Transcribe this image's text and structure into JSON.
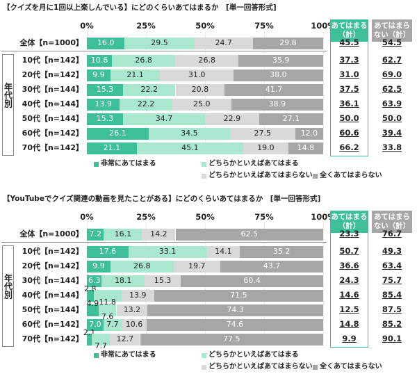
{
  "chart_data": [
    {
      "type": "bar",
      "orientation": "horizontal",
      "stacked": true,
      "title": "【クイズを月に1回以上楽しんでいる】にどのくらいあてはまるか　[単一回答形式]",
      "categories": [
        "全体【n=1000】",
        "10代【n=142】",
        "20代【n=142】",
        "30代【n=144】",
        "40代【n=144】",
        "50代【n=144】",
        "60代【n=142】",
        "70代【n=142】"
      ],
      "group_label": "年代別",
      "xlim": [
        0,
        100
      ],
      "xticks": [
        {
          "value": 0,
          "label": "0%"
        },
        {
          "value": 25,
          "label": "25%"
        },
        {
          "value": 50,
          "label": "50%"
        },
        {
          "value": 75,
          "label": "75%"
        },
        {
          "value": 100,
          "label": "100%"
        }
      ],
      "series": [
        {
          "name": "非常にあてはまる",
          "color": "#3dbf99",
          "values": [
            16.0,
            10.6,
            9.9,
            15.3,
            13.9,
            15.3,
            26.1,
            21.1
          ],
          "value_labels": [
            "16.0",
            "10.6",
            "9.9",
            "15.3",
            "13.9",
            "15.3",
            "26.1",
            "21.1"
          ]
        },
        {
          "name": "どちらかといえばあてはまる",
          "color": "#a9e8cf",
          "values": [
            29.5,
            26.8,
            21.1,
            22.2,
            22.2,
            34.7,
            34.5,
            45.1
          ],
          "value_labels": [
            "29.5",
            "26.8",
            "21.1",
            "22.2",
            "22.2",
            "34.7",
            "34.5",
            "45.1"
          ]
        },
        {
          "name": "どちらかといえばあてはまらない",
          "color": "#d9d9d9",
          "values": [
            24.7,
            26.8,
            31.0,
            20.8,
            25.0,
            22.9,
            27.5,
            19.0
          ],
          "value_labels": [
            "24.7",
            "26.8",
            "31.0",
            "20.8",
            "25.0",
            "22.9",
            "27.5",
            "19.0"
          ]
        },
        {
          "name": "全くあてはまらない",
          "color": "#a6a6a6",
          "values": [
            29.8,
            35.9,
            38.0,
            41.7,
            38.9,
            27.1,
            12.0,
            14.8
          ],
          "value_labels": [
            "29.8",
            "35.9",
            "38.0",
            "41.7",
            "38.9",
            "27.1",
            "12.0",
            "14.8"
          ]
        }
      ],
      "summary": {
        "headers": [
          "あてはまる（計）",
          "あてはまらない（計）"
        ],
        "rows": [
          [
            "45.5",
            "54.5"
          ],
          [
            "37.3",
            "62.7"
          ],
          [
            "31.0",
            "69.0"
          ],
          [
            "37.5",
            "62.5"
          ],
          [
            "36.1",
            "63.9"
          ],
          [
            "50.0",
            "50.0"
          ],
          [
            "60.6",
            "39.4"
          ],
          [
            "66.2",
            "33.8"
          ]
        ]
      }
    },
    {
      "type": "bar",
      "orientation": "horizontal",
      "stacked": true,
      "title": "【YouTubeでクイズ関連の動画を見たことがある】にどのくらいあてはまるか　[単一回答形式]",
      "categories": [
        "全体【n=1000】",
        "10代【n=142】",
        "20代【n=142】",
        "30代【n=144】",
        "40代【n=144】",
        "50代【n=144】",
        "60代【n=142】",
        "70代【n=142】"
      ],
      "group_label": "年代別",
      "xlim": [
        0,
        100
      ],
      "xticks": [
        {
          "value": 0,
          "label": "0%"
        },
        {
          "value": 25,
          "label": "25%"
        },
        {
          "value": 50,
          "label": "50%"
        },
        {
          "value": 75,
          "label": "75%"
        },
        {
          "value": 100,
          "label": "100%"
        }
      ],
      "series": [
        {
          "name": "非常にあてはまる",
          "color": "#3dbf99",
          "values": [
            7.2,
            17.6,
            9.9,
            6.3,
            2.8,
            4.9,
            7.0,
            2.1
          ],
          "value_labels": [
            "7.2",
            "17.6",
            "9.9",
            "6.3",
            "2.8",
            "4.9",
            "7.0",
            "2.1"
          ]
        },
        {
          "name": "どちらかといえばあてはまる",
          "color": "#a9e8cf",
          "values": [
            16.1,
            33.1,
            26.8,
            18.1,
            11.8,
            7.6,
            7.7,
            7.7
          ],
          "value_labels": [
            "16.1",
            "33.1",
            "26.8",
            "18.1",
            "11.8",
            "7.6",
            "7.7",
            "7.7"
          ]
        },
        {
          "name": "どちらかといえばあてはまらない",
          "color": "#d9d9d9",
          "values": [
            14.2,
            14.1,
            19.7,
            15.3,
            13.9,
            13.2,
            10.6,
            12.7
          ],
          "value_labels": [
            "14.2",
            "14.1",
            "19.7",
            "15.3",
            "13.9",
            "13.2",
            "10.6",
            "12.7"
          ]
        },
        {
          "name": "全くあてはまらない",
          "color": "#a6a6a6",
          "values": [
            62.5,
            35.2,
            43.7,
            60.4,
            71.5,
            74.3,
            74.6,
            77.5
          ],
          "value_labels": [
            "62.5",
            "35.2",
            "43.7",
            "60.4",
            "71.5",
            "74.3",
            "74.6",
            "77.5"
          ]
        }
      ],
      "summary": {
        "headers": [
          "あてはまる（計）",
          "あてはまらない（計）"
        ],
        "rows": [
          [
            "23.3",
            "76.7"
          ],
          [
            "50.7",
            "49.3"
          ],
          [
            "36.6",
            "63.4"
          ],
          [
            "24.3",
            "75.7"
          ],
          [
            "14.6",
            "85.4"
          ],
          [
            "12.5",
            "87.5"
          ],
          [
            "14.8",
            "85.2"
          ],
          [
            "9.9",
            "90.1"
          ]
        ]
      }
    }
  ]
}
